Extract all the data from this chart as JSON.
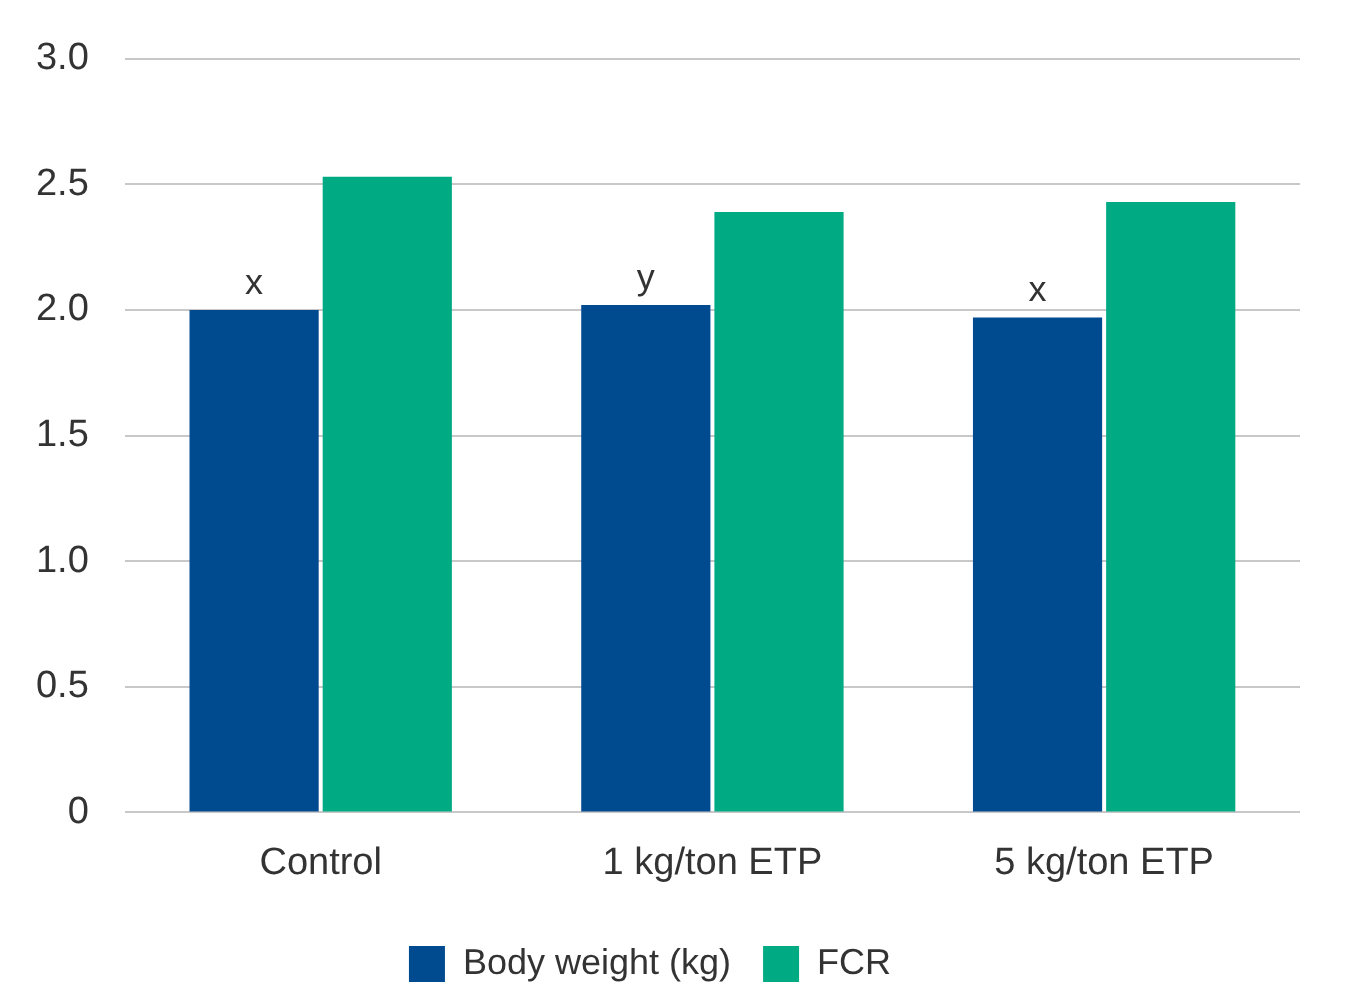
{
  "chart_data": {
    "type": "bar",
    "categories": [
      "Control",
      "1 kg/ton ETP",
      "5 kg/ton ETP"
    ],
    "series": [
      {
        "name": "Body weight (kg)",
        "color": "#004a8f",
        "values": [
          2.0,
          2.02,
          1.97
        ]
      },
      {
        "name": "FCR",
        "color": "#00ab84",
        "values": [
          2.53,
          2.39,
          2.43
        ]
      }
    ],
    "ylim": [
      0,
      3
    ],
    "yticks": [
      0,
      {
        "value": 0.5,
        "label": "0.5"
      },
      {
        "value": 1,
        "label": "1.0"
      },
      {
        "value": 1.5,
        "label": "1.5"
      },
      {
        "value": 2,
        "label": "2.0"
      },
      {
        "value": 2.5,
        "label": "2.5"
      },
      {
        "value": 3,
        "label": "3.0"
      }
    ],
    "grid": "y",
    "legend": "bottom",
    "annotations": [
      {
        "text": "x",
        "x": "Control",
        "y": 2.0
      },
      {
        "text": "y",
        "x": "1 kg/ton ETP",
        "y": 2.02
      },
      {
        "text": "x",
        "x": "5 kg/ton ETP",
        "y": 1.97
      }
    ]
  }
}
